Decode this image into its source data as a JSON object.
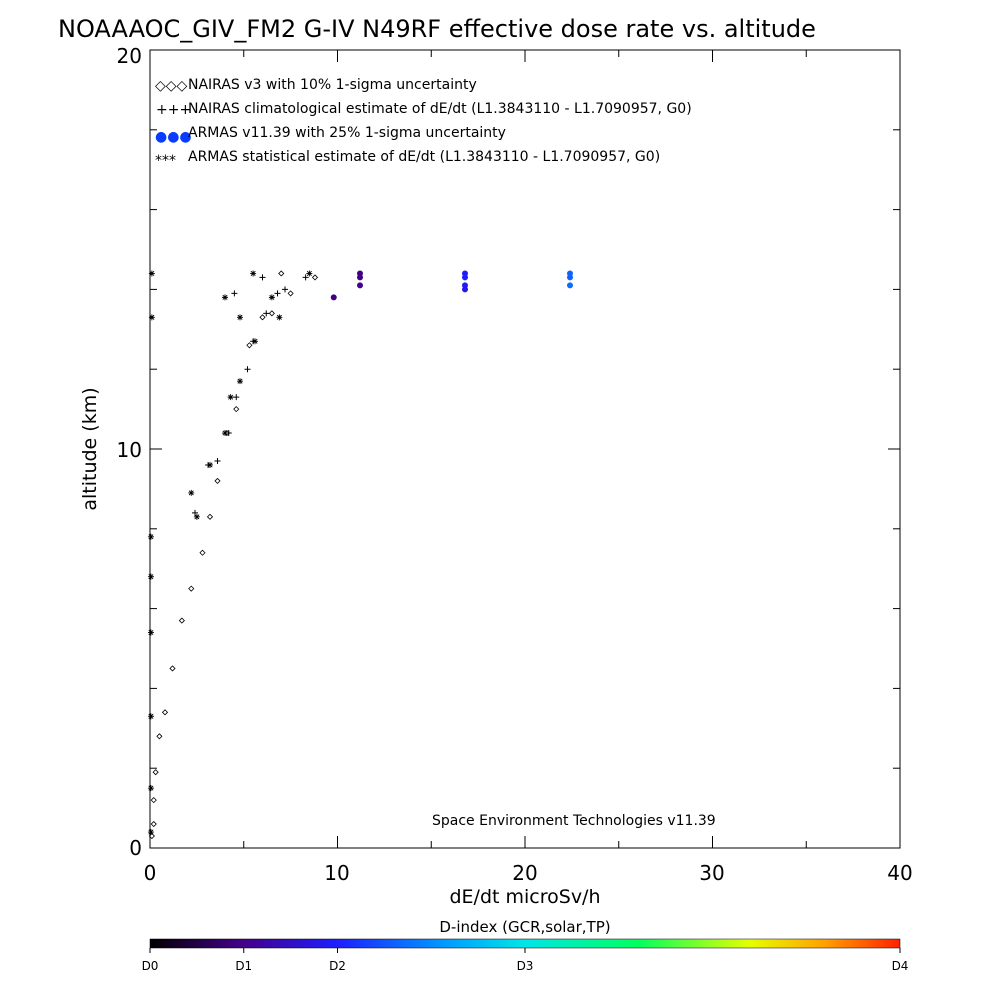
{
  "chart_data": {
    "type": "scatter",
    "title": "NOAAAOC_GIV_FM2 G-IV   N49RF  effective dose rate vs. altitude",
    "xlabel": "dE/dt microSv/h",
    "ylabel": "altitude (km)",
    "xlim": [
      0,
      40
    ],
    "ylim": [
      0,
      20
    ],
    "x_ticks": [
      "0",
      "10",
      "20",
      "30",
      "40"
    ],
    "y_ticks": [
      "0",
      "10",
      "20"
    ],
    "legend_placement": "top-left",
    "legend": [
      {
        "symbol": "◇◇◇",
        "label": "NAIRAS v3 with 10% 1-sigma uncertainty",
        "color": "#000000"
      },
      {
        "symbol": "+++",
        "label": "NAIRAS climatological estimate of dE/dt (L1.3843110 - L1.7090957, G0)",
        "color": "#000000"
      },
      {
        "symbol": "●●●",
        "label": "ARMAS v11.39 with 25% 1-sigma uncertainty",
        "color": "#0a3cff"
      },
      {
        "symbol": "***",
        "label": "ARMAS statistical estimate of dE/dt (L1.3843110 - L1.7090957, G0)",
        "color": "#000000"
      }
    ],
    "annotation": "Space Environment Technologies v11.39",
    "colorbar": {
      "title": "D-index (GCR,solar,TP)",
      "labels": [
        "D0",
        "D1",
        "D2",
        "D3",
        "D4"
      ],
      "label_values": [
        0,
        0.125,
        0.25,
        0.5,
        1.0
      ]
    },
    "series": [
      {
        "name": "NAIRAS v3 with 10% 1-sigma uncertainty",
        "marker": "diamond",
        "points": [
          [
            0.1,
            0.3
          ],
          [
            0.2,
            0.6
          ],
          [
            0.2,
            1.2
          ],
          [
            0.3,
            1.9
          ],
          [
            0.5,
            2.8
          ],
          [
            0.8,
            3.4
          ],
          [
            1.2,
            4.5
          ],
          [
            1.7,
            5.7
          ],
          [
            2.2,
            6.5
          ],
          [
            2.8,
            7.4
          ],
          [
            3.2,
            8.3
          ],
          [
            3.6,
            9.2
          ],
          [
            4.1,
            10.4
          ],
          [
            4.6,
            11.0
          ],
          [
            5.3,
            12.6
          ],
          [
            6.0,
            13.3
          ],
          [
            6.5,
            13.4
          ],
          [
            7.5,
            13.9
          ],
          [
            8.8,
            14.3
          ],
          [
            7.0,
            14.4
          ]
        ]
      },
      {
        "name": "NAIRAS climatological estimate of dE/dt (L1.3843110 - L1.7090957, G0)",
        "marker": "plus",
        "points": [
          [
            2.4,
            8.4
          ],
          [
            3.1,
            9.6
          ],
          [
            3.6,
            9.7
          ],
          [
            4.2,
            10.4
          ],
          [
            4.6,
            11.3
          ],
          [
            5.2,
            12.0
          ],
          [
            5.5,
            12.7
          ],
          [
            6.2,
            13.4
          ],
          [
            6.8,
            13.9
          ],
          [
            7.2,
            14.0
          ],
          [
            8.3,
            14.3
          ],
          [
            6.0,
            14.3
          ],
          [
            4.5,
            13.9
          ]
        ]
      },
      {
        "name": "ARMAS v11.39 with 25% 1-sigma uncertainty",
        "marker": "dot",
        "points": [
          {
            "x": 9.8,
            "y": 13.8,
            "d": 0.12
          },
          {
            "x": 11.2,
            "y": 14.4,
            "d": 0.12
          },
          {
            "x": 11.2,
            "y": 14.3,
            "d": 0.12
          },
          {
            "x": 11.2,
            "y": 14.1,
            "d": 0.13
          },
          {
            "x": 16.8,
            "y": 14.4,
            "d": 0.24
          },
          {
            "x": 16.8,
            "y": 14.3,
            "d": 0.25
          },
          {
            "x": 16.8,
            "y": 14.1,
            "d": 0.24
          },
          {
            "x": 16.8,
            "y": 14.0,
            "d": 0.23
          },
          {
            "x": 22.4,
            "y": 14.4,
            "d": 0.33
          },
          {
            "x": 22.4,
            "y": 14.3,
            "d": 0.33
          },
          {
            "x": 22.4,
            "y": 14.1,
            "d": 0.34
          }
        ]
      },
      {
        "name": "ARMAS statistical estimate of dE/dt (L1.3843110 - L1.7090957, G0)",
        "marker": "asterisk",
        "points": [
          [
            0.05,
            0.4
          ],
          [
            0.05,
            1.5
          ],
          [
            0.05,
            3.3
          ],
          [
            0.05,
            5.4
          ],
          [
            0.05,
            6.8
          ],
          [
            0.05,
            7.8
          ],
          [
            0.1,
            13.3
          ],
          [
            0.1,
            14.4
          ],
          [
            2.2,
            8.9
          ],
          [
            2.5,
            8.3
          ],
          [
            3.2,
            9.6
          ],
          [
            4.0,
            10.4
          ],
          [
            4.3,
            11.3
          ],
          [
            4.8,
            11.7
          ],
          [
            5.6,
            12.7
          ],
          [
            4.8,
            13.3
          ],
          [
            6.9,
            13.3
          ],
          [
            4.0,
            13.8
          ],
          [
            6.5,
            13.8
          ],
          [
            5.5,
            14.4
          ],
          [
            8.5,
            14.4
          ]
        ]
      }
    ]
  },
  "colors": {
    "axis": "#000000",
    "background": "#ffffff"
  }
}
